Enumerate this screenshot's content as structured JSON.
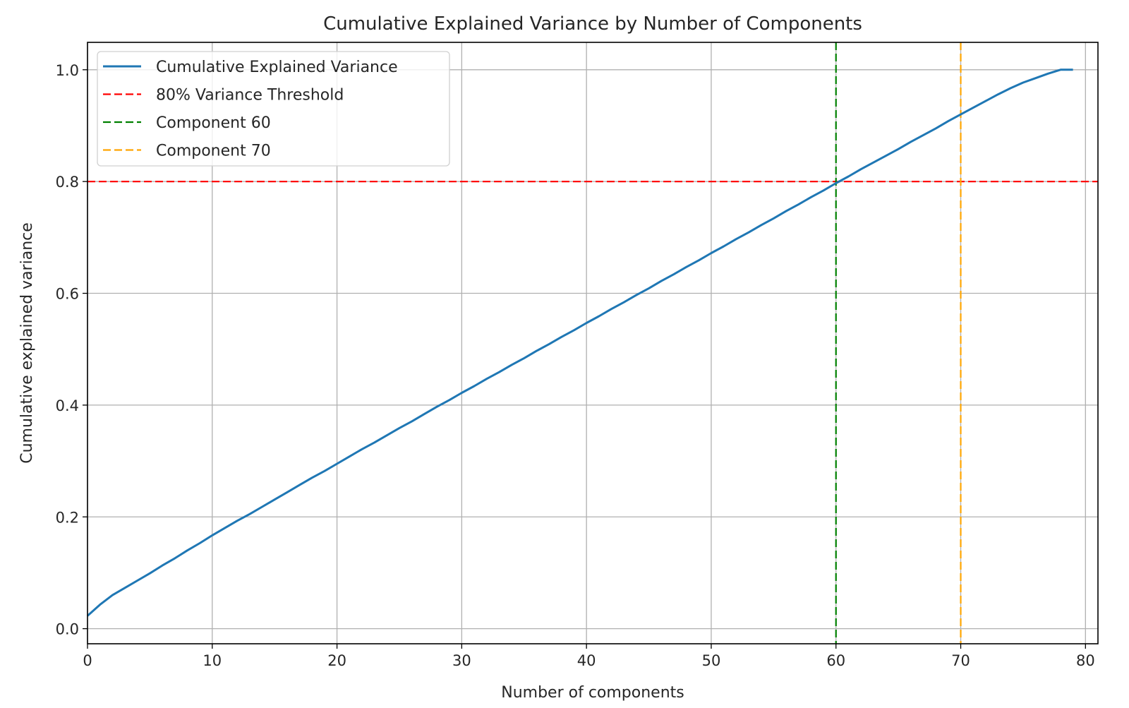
{
  "chart_data": {
    "type": "line",
    "title": "Cumulative Explained Variance by Number of Components",
    "xlabel": "Number of components",
    "ylabel": "Cumulative explained variance",
    "xlim": [
      0,
      81
    ],
    "ylim": [
      -0.027,
      1.049
    ],
    "xticks": [
      0,
      10,
      20,
      30,
      40,
      50,
      60,
      70,
      80
    ],
    "xtick_labels": [
      "0",
      "10",
      "20",
      "30",
      "40",
      "50",
      "60",
      "70",
      "80"
    ],
    "yticks": [
      0.0,
      0.2,
      0.4,
      0.6,
      0.8,
      1.0
    ],
    "ytick_labels": [
      "0.0",
      "0.2",
      "0.4",
      "0.6",
      "0.8",
      "1.0"
    ],
    "grid": true,
    "legend_position": "top-left",
    "series": [
      {
        "name": "Cumulative Explained Variance",
        "color": "#1f77b4",
        "style": "solid",
        "x": [
          0,
          1,
          2,
          3,
          4,
          5,
          6,
          7,
          8,
          9,
          10,
          11,
          12,
          13,
          14,
          15,
          16,
          17,
          18,
          19,
          20,
          21,
          22,
          23,
          24,
          25,
          26,
          27,
          28,
          29,
          30,
          31,
          32,
          33,
          34,
          35,
          36,
          37,
          38,
          39,
          40,
          41,
          42,
          43,
          44,
          45,
          46,
          47,
          48,
          49,
          50,
          51,
          52,
          53,
          54,
          55,
          56,
          57,
          58,
          59,
          60,
          61,
          62,
          63,
          64,
          65,
          66,
          67,
          68,
          69,
          70,
          71,
          72,
          73,
          74,
          75,
          76,
          77,
          78,
          79
        ],
        "y": [
          0.023,
          0.043,
          0.06,
          0.073,
          0.086,
          0.099,
          0.113,
          0.126,
          0.14,
          0.153,
          0.167,
          0.18,
          0.193,
          0.205,
          0.218,
          0.231,
          0.244,
          0.257,
          0.27,
          0.282,
          0.295,
          0.308,
          0.321,
          0.333,
          0.346,
          0.359,
          0.371,
          0.384,
          0.397,
          0.409,
          0.422,
          0.434,
          0.447,
          0.459,
          0.472,
          0.484,
          0.497,
          0.509,
          0.522,
          0.534,
          0.547,
          0.559,
          0.572,
          0.584,
          0.597,
          0.609,
          0.622,
          0.634,
          0.647,
          0.659,
          0.672,
          0.684,
          0.697,
          0.709,
          0.722,
          0.734,
          0.747,
          0.759,
          0.772,
          0.784,
          0.797,
          0.809,
          0.822,
          0.834,
          0.846,
          0.858,
          0.871,
          0.883,
          0.895,
          0.908,
          0.92,
          0.932,
          0.944,
          0.956,
          0.967,
          0.977,
          0.985,
          0.993,
          1.0,
          1.0
        ]
      }
    ],
    "reference_lines": [
      {
        "name": "80% Variance Threshold",
        "orientation": "horizontal",
        "value": 0.8,
        "color": "#ff0000",
        "style": "dashed"
      },
      {
        "name": "Component 60",
        "orientation": "vertical",
        "value": 60,
        "color": "#008000",
        "style": "dashed"
      },
      {
        "name": "Component 70",
        "orientation": "vertical",
        "value": 70,
        "color": "#ffa500",
        "style": "dashed"
      }
    ]
  }
}
